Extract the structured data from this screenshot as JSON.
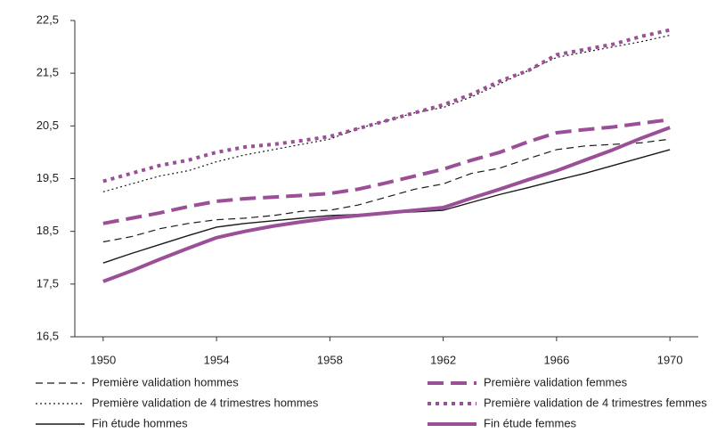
{
  "chart_data": {
    "type": "line",
    "x": [
      1950,
      1951,
      1952,
      1953,
      1954,
      1955,
      1956,
      1957,
      1958,
      1959,
      1960,
      1961,
      1962,
      1963,
      1964,
      1965,
      1966,
      1967,
      1968,
      1969,
      1970
    ],
    "xlim": [
      1949,
      1971
    ],
    "xticks": [
      1950,
      1954,
      1958,
      1962,
      1966,
      1970
    ],
    "ylim": [
      16.5,
      22.5
    ],
    "yticks": [
      {
        "value": 16.5,
        "label": "16,5"
      },
      {
        "value": 17.5,
        "label": "17,5"
      },
      {
        "value": 18.5,
        "label": "18,5"
      },
      {
        "value": 19.5,
        "label": "19,5"
      },
      {
        "value": 20.5,
        "label": "20,5"
      },
      {
        "value": 21.5,
        "label": "21,5"
      },
      {
        "value": 22.5,
        "label": "22,5"
      }
    ],
    "series": [
      {
        "name": "Première validation hommes",
        "color": "#1a1a1a",
        "dash": "8 5",
        "width": 1.2,
        "values": [
          18.3,
          18.4,
          18.55,
          18.65,
          18.72,
          18.75,
          18.8,
          18.88,
          18.9,
          19.0,
          19.15,
          19.3,
          19.4,
          19.6,
          19.7,
          19.88,
          20.05,
          20.12,
          20.15,
          20.18,
          20.25
        ]
      },
      {
        "name": "Première validation femmes",
        "color": "#9b4f96",
        "dash": "18 8",
        "width": 4,
        "values": [
          18.65,
          18.75,
          18.85,
          18.97,
          19.07,
          19.12,
          19.15,
          19.18,
          19.22,
          19.3,
          19.42,
          19.55,
          19.68,
          19.85,
          20.0,
          20.2,
          20.37,
          20.43,
          20.48,
          20.55,
          20.62
        ]
      },
      {
        "name": "Première validation de 4 trimestres hommes",
        "color": "#1a1a1a",
        "dash": "2 3",
        "width": 1.2,
        "values": [
          19.25,
          19.4,
          19.55,
          19.65,
          19.82,
          19.95,
          20.05,
          20.15,
          20.25,
          20.45,
          20.6,
          20.75,
          20.85,
          21.05,
          21.3,
          21.55,
          21.8,
          21.9,
          22.0,
          22.1,
          22.22
        ]
      },
      {
        "name": "Première validation de 4 trimestres femmes",
        "color": "#9b4f96",
        "dash": "4 5",
        "width": 4,
        "values": [
          19.45,
          19.6,
          19.75,
          19.85,
          20.0,
          20.1,
          20.15,
          20.22,
          20.3,
          20.45,
          20.6,
          20.75,
          20.9,
          21.1,
          21.35,
          21.55,
          21.85,
          21.95,
          22.05,
          22.2,
          22.32
        ]
      },
      {
        "name": "Fin étude hommes",
        "color": "#1a1a1a",
        "dash": "none",
        "width": 1.4,
        "values": [
          17.9,
          18.08,
          18.25,
          18.42,
          18.58,
          18.65,
          18.7,
          18.75,
          18.8,
          18.82,
          18.85,
          18.87,
          18.9,
          19.05,
          19.2,
          19.33,
          19.47,
          19.6,
          19.75,
          19.9,
          20.05
        ]
      },
      {
        "name": "Fin étude femmes",
        "color": "#9b4f96",
        "dash": "none",
        "width": 4,
        "values": [
          17.55,
          17.75,
          17.97,
          18.18,
          18.38,
          18.5,
          18.6,
          18.68,
          18.75,
          18.8,
          18.85,
          18.9,
          18.95,
          19.13,
          19.3,
          19.48,
          19.65,
          19.85,
          20.05,
          20.27,
          20.47
        ]
      }
    ]
  }
}
